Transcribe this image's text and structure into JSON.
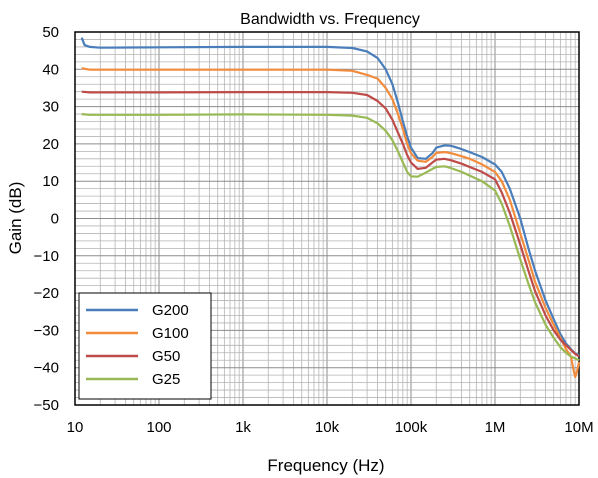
{
  "chart_data": {
    "type": "line",
    "title": "Bandwidth vs. Frequency",
    "xlabel": "Frequency (Hz)",
    "ylabel": "Gain (dB)",
    "x_scale": "log",
    "xlim": [
      10,
      10000000
    ],
    "ylim": [
      -50,
      50
    ],
    "grid": true,
    "legend_position": "bottom-left",
    "x_ticks": [
      {
        "value": 10,
        "label": "10"
      },
      {
        "value": 100,
        "label": "100"
      },
      {
        "value": 1000,
        "label": "1k"
      },
      {
        "value": 10000,
        "label": "10k"
      },
      {
        "value": 100000,
        "label": "100k"
      },
      {
        "value": 1000000,
        "label": "1M"
      },
      {
        "value": 10000000,
        "label": "10M"
      }
    ],
    "y_ticks": [
      {
        "value": 50,
        "label": "50"
      },
      {
        "value": 40,
        "label": "40"
      },
      {
        "value": 30,
        "label": "30"
      },
      {
        "value": 20,
        "label": "20"
      },
      {
        "value": 10,
        "label": "10"
      },
      {
        "value": 0,
        "label": "0"
      },
      {
        "value": -10,
        "label": "−10"
      },
      {
        "value": -20,
        "label": "−20"
      },
      {
        "value": -30,
        "label": "−30"
      },
      {
        "value": -40,
        "label": "−40"
      },
      {
        "value": -50,
        "label": "−50"
      }
    ],
    "series": [
      {
        "name": "G200",
        "color": "#4a7ebb",
        "points": [
          [
            12,
            48.5
          ],
          [
            13,
            46.5
          ],
          [
            15,
            46
          ],
          [
            20,
            45.8
          ],
          [
            100,
            45.9
          ],
          [
            1000,
            46
          ],
          [
            10000,
            46
          ],
          [
            20000,
            45.7
          ],
          [
            30000,
            44.8
          ],
          [
            40000,
            43
          ],
          [
            50000,
            40
          ],
          [
            60000,
            36
          ],
          [
            70000,
            31
          ],
          [
            80000,
            26
          ],
          [
            90000,
            22
          ],
          [
            100000,
            19
          ],
          [
            120000,
            16.2
          ],
          [
            150000,
            16
          ],
          [
            180000,
            17.5
          ],
          [
            200000,
            19
          ],
          [
            250000,
            19.6
          ],
          [
            300000,
            19.5
          ],
          [
            400000,
            18.6
          ],
          [
            500000,
            17.8
          ],
          [
            700000,
            16.5
          ],
          [
            1000000,
            14.5
          ],
          [
            1200000,
            12.5
          ],
          [
            1500000,
            8
          ],
          [
            2000000,
            0
          ],
          [
            2500000,
            -8
          ],
          [
            3000000,
            -14
          ],
          [
            4000000,
            -22
          ],
          [
            5000000,
            -27
          ],
          [
            6000000,
            -31
          ],
          [
            7000000,
            -33.5
          ],
          [
            8000000,
            -35
          ],
          [
            9000000,
            -36.2
          ],
          [
            10000000,
            -36.6
          ]
        ]
      },
      {
        "name": "G100",
        "color": "#f38b3c",
        "points": [
          [
            12,
            40.3
          ],
          [
            15,
            39.9
          ],
          [
            100,
            39.9
          ],
          [
            1000,
            39.9
          ],
          [
            10000,
            39.9
          ],
          [
            20000,
            39.6
          ],
          [
            30000,
            38.5
          ],
          [
            40000,
            37.5
          ],
          [
            50000,
            35
          ],
          [
            60000,
            32
          ],
          [
            70000,
            28
          ],
          [
            80000,
            24
          ],
          [
            90000,
            20
          ],
          [
            100000,
            17.5
          ],
          [
            120000,
            15.5
          ],
          [
            150000,
            15.2
          ],
          [
            180000,
            16.5
          ],
          [
            200000,
            17.6
          ],
          [
            250000,
            17.8
          ],
          [
            300000,
            17.5
          ],
          [
            400000,
            16.7
          ],
          [
            500000,
            16
          ],
          [
            700000,
            14.5
          ],
          [
            1000000,
            12.5
          ],
          [
            1200000,
            10
          ],
          [
            1500000,
            5
          ],
          [
            2000000,
            -4
          ],
          [
            2500000,
            -11
          ],
          [
            3000000,
            -17
          ],
          [
            4000000,
            -24
          ],
          [
            5000000,
            -28.5
          ],
          [
            6000000,
            -32
          ],
          [
            7000000,
            -35
          ],
          [
            8000000,
            -37
          ],
          [
            8500000,
            -40
          ],
          [
            9000000,
            -42.5
          ],
          [
            9500000,
            -41
          ],
          [
            10000000,
            -38.5
          ]
        ]
      },
      {
        "name": "G50",
        "color": "#be4b48",
        "points": [
          [
            12,
            34
          ],
          [
            15,
            33.8
          ],
          [
            100,
            33.8
          ],
          [
            1000,
            33.9
          ],
          [
            10000,
            33.9
          ],
          [
            20000,
            33.7
          ],
          [
            30000,
            33.1
          ],
          [
            40000,
            31.5
          ],
          [
            50000,
            29.5
          ],
          [
            60000,
            26.5
          ],
          [
            70000,
            23
          ],
          [
            80000,
            20
          ],
          [
            90000,
            17
          ],
          [
            100000,
            15
          ],
          [
            120000,
            13.3
          ],
          [
            150000,
            13.6
          ],
          [
            180000,
            15
          ],
          [
            200000,
            15.8
          ],
          [
            250000,
            16
          ],
          [
            300000,
            15.6
          ],
          [
            400000,
            14.7
          ],
          [
            500000,
            13.8
          ],
          [
            700000,
            12.5
          ],
          [
            1000000,
            10.5
          ],
          [
            1200000,
            7
          ],
          [
            1500000,
            1.5
          ],
          [
            2000000,
            -7
          ],
          [
            2500000,
            -14
          ],
          [
            3000000,
            -19.5
          ],
          [
            4000000,
            -26
          ],
          [
            5000000,
            -30
          ],
          [
            6000000,
            -32.5
          ],
          [
            7000000,
            -34
          ],
          [
            8000000,
            -35.2
          ],
          [
            9000000,
            -36.3
          ],
          [
            10000000,
            -37
          ]
        ]
      },
      {
        "name": "G25",
        "color": "#98b954",
        "points": [
          [
            12,
            28
          ],
          [
            15,
            27.8
          ],
          [
            100,
            27.8
          ],
          [
            1000,
            27.9
          ],
          [
            10000,
            27.8
          ],
          [
            20000,
            27.6
          ],
          [
            30000,
            27
          ],
          [
            40000,
            25.5
          ],
          [
            50000,
            23.5
          ],
          [
            60000,
            21
          ],
          [
            70000,
            18
          ],
          [
            80000,
            15
          ],
          [
            90000,
            12.5
          ],
          [
            100000,
            11.3
          ],
          [
            120000,
            11.2
          ],
          [
            150000,
            12.3
          ],
          [
            180000,
            13.3
          ],
          [
            200000,
            13.8
          ],
          [
            250000,
            14
          ],
          [
            300000,
            13.5
          ],
          [
            400000,
            12.5
          ],
          [
            500000,
            11.5
          ],
          [
            700000,
            10
          ],
          [
            1000000,
            7.5
          ],
          [
            1200000,
            4
          ],
          [
            1500000,
            -2
          ],
          [
            2000000,
            -11
          ],
          [
            2500000,
            -17.5
          ],
          [
            3000000,
            -22.5
          ],
          [
            4000000,
            -28.5
          ],
          [
            5000000,
            -32
          ],
          [
            6000000,
            -34.5
          ],
          [
            7000000,
            -36
          ],
          [
            8000000,
            -37
          ],
          [
            9000000,
            -37.5
          ],
          [
            10000000,
            -38
          ]
        ]
      }
    ]
  }
}
